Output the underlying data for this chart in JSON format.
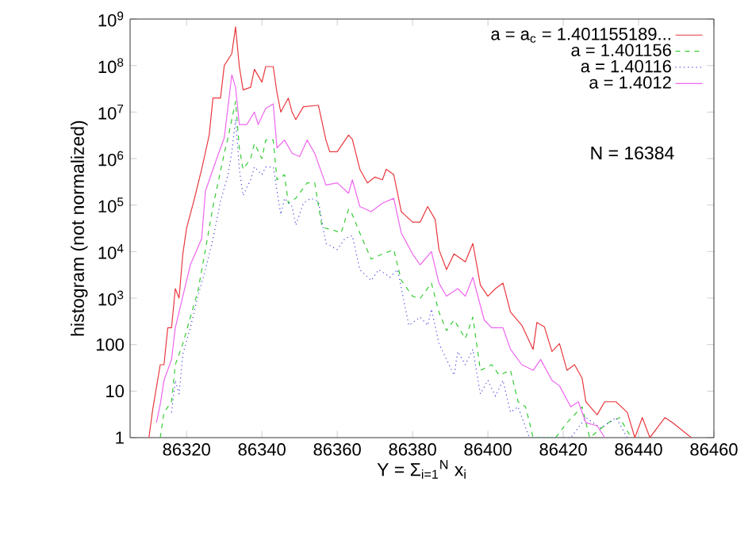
{
  "chart_data": {
    "type": "line",
    "xlabel": "Y = Σ$_{i=1}$$^{N}$ x$_{i}$",
    "ylabel": "histogram  (not normalized)",
    "log": "y",
    "legend": "top right",
    "marker": "none",
    "annotations": [
      "N = 16384"
    ],
    "xlim": [
      86305,
      86460
    ],
    "xticks": [
      86320,
      86340,
      86360,
      86380,
      86400,
      86420,
      86440,
      86460
    ],
    "ylim": [
      1,
      1000000000
    ],
    "yticks": [
      1,
      10,
      100,
      {
        "value": 1000,
        "label": "10$^{3}$"
      },
      {
        "value": 10000,
        "label": "10$^{4}$"
      },
      {
        "value": 100000,
        "label": "10$^{5}$"
      },
      {
        "value": 1000000,
        "label": "10$^{6}$"
      },
      {
        "value": 10000000,
        "label": "10$^{7}$"
      },
      {
        "value": 100000000,
        "label": "10$^{8}$"
      },
      {
        "value": 1000000000,
        "label": "10$^{9}$"
      }
    ],
    "series": [
      {
        "name": "a = a$_{c}$ = 1.401155189...",
        "color": "#e8383d",
        "line_style": "solid",
        "x": [
          86310,
          86311,
          86313,
          86314,
          86315,
          86316,
          86317,
          86318,
          86319,
          86320,
          86322,
          86324,
          86326,
          86327,
          86329,
          86330,
          86332,
          86333,
          86334,
          86335,
          86337,
          86338,
          86340,
          86341,
          86343,
          86344,
          86345,
          86347,
          86348,
          86349,
          86351,
          86355,
          86357,
          86358,
          86360,
          86363,
          86364,
          86366,
          86368,
          86370,
          86372,
          86373,
          86375,
          86377,
          86380,
          86382,
          86384,
          86386,
          86387,
          86389,
          86391,
          86394,
          86396,
          86398,
          86400,
          86402,
          86404,
          86406,
          86409,
          86412,
          86413,
          86415,
          86417,
          86419,
          86421,
          86423,
          86425,
          86426,
          86429,
          86431,
          86434,
          86437,
          86439,
          86441,
          86443,
          86447,
          86449,
          86454
        ],
        "values": [
          1,
          4,
          37,
          37,
          230,
          230,
          1600,
          1000,
          8900,
          32000,
          130000,
          590000,
          3200000,
          20000000,
          20000000,
          100000000,
          180000000,
          680000000,
          95000000,
          30000000,
          34000000,
          83000000,
          44000000,
          95000000,
          95000000,
          26000000,
          10000000,
          20000000,
          10000000,
          6900000,
          13000000,
          14000000,
          2500000,
          1400000,
          1400000,
          3200000,
          2600000,
          590000,
          300000,
          400000,
          350000,
          590000,
          450000,
          72000,
          43000,
          43000,
          93000,
          49000,
          11000,
          4100,
          8900,
          6000,
          15000,
          1900,
          1100,
          1600,
          2100,
          500,
          260,
          79,
          300,
          240,
          71,
          105,
          28,
          37,
          19,
          5.9,
          3.1,
          5.9,
          5.9,
          3.5,
          1,
          2.7,
          1,
          2.7,
          2.1,
          1
        ]
      },
      {
        "name": "a = 1.401156",
        "color": "#33cc33",
        "line_style": "dashed",
        "x": [
          86313,
          86314,
          86316,
          86317,
          86319,
          86321,
          86323,
          86325,
          86327,
          86330,
          86331,
          86333,
          86334,
          86335,
          86337,
          86338,
          86340,
          86341,
          86343,
          86344,
          86346,
          86347,
          86349,
          86352,
          86354,
          86356,
          86359,
          86361,
          86363,
          86364,
          86366,
          86369,
          86372,
          86375,
          86377,
          86380,
          86382,
          86385,
          86387,
          86389,
          86391,
          86394,
          86396,
          86398,
          86401,
          86403,
          86406,
          86408,
          86410,
          86412,
          86418,
          86421,
          86425,
          86427,
          86432,
          86435,
          86438
        ],
        "values": [
          1,
          3.5,
          5.9,
          37,
          105,
          390,
          1400,
          11000,
          93000,
          1300000,
          2800000,
          17000000,
          1700000,
          590000,
          1000000,
          2100000,
          1000000,
          2500000,
          2500000,
          350000,
          450000,
          110000,
          140000,
          300000,
          300000,
          33000,
          29000,
          25000,
          81000,
          63000,
          25000,
          6900,
          8900,
          11000,
          2400,
          1100,
          980,
          2100,
          500,
          200,
          340,
          135,
          390,
          28,
          37,
          22,
          28,
          5.9,
          4.6,
          1,
          1,
          2.1,
          4.6,
          1,
          2.1,
          2.7,
          1
        ]
      },
      {
        "name": "a = 1.40116",
        "color": "#4444dd",
        "line_style": "dotted",
        "x": [
          86316,
          86317,
          86318,
          86319,
          86321,
          86323,
          86325,
          86327,
          86329,
          86331,
          86332,
          86333,
          86334,
          86335,
          86337,
          86338,
          86340,
          86341,
          86343,
          86345,
          86346,
          86348,
          86349,
          86351,
          86353,
          86355,
          86357,
          86360,
          86362,
          86364,
          86366,
          86369,
          86371,
          86374,
          86376,
          86379,
          86382,
          86384,
          86385,
          86387,
          86391,
          86392,
          86394,
          86396,
          86398,
          86400,
          86402,
          86404,
          86406,
          86408,
          86411,
          86422,
          86426,
          86430,
          86434,
          86437
        ],
        "values": [
          3.5,
          17,
          8.7,
          62,
          230,
          1100,
          4100,
          19000,
          120000,
          450000,
          1400000,
          6900000,
          590000,
          160000,
          350000,
          660000,
          450000,
          660000,
          660000,
          63000,
          140000,
          93000,
          37000,
          110000,
          140000,
          120000,
          15000,
          11000,
          19000,
          22000,
          4100,
          2400,
          4100,
          2800,
          4100,
          260,
          390,
          260,
          580,
          105,
          22,
          71,
          37,
          79,
          8.7,
          17,
          7.8,
          17,
          3.5,
          4.6,
          1,
          1,
          2.7,
          1.6,
          2.7,
          1
        ]
      },
      {
        "name": "a = 1.4012",
        "color": "#ee66ee",
        "line_style": "solid",
        "x": [
          86312,
          86313,
          86314,
          86316,
          86317,
          86319,
          86321,
          86324,
          86325,
          86328,
          86330,
          86332,
          86333,
          86334,
          86336,
          86338,
          86339,
          86341,
          86343,
          86344,
          86346,
          86348,
          86350,
          86352,
          86354,
          86357,
          86360,
          86363,
          86364,
          86366,
          86369,
          86372,
          86375,
          86377,
          86380,
          86382,
          86385,
          86387,
          86389,
          86392,
          86394,
          86396,
          86399,
          86401,
          86404,
          86406,
          86409,
          86412,
          86414,
          86417,
          86419,
          86422,
          86424,
          86426,
          86429,
          86431
        ],
        "values": [
          2.1,
          5.2,
          17,
          48,
          230,
          1100,
          5200,
          19000,
          200000,
          1000000,
          2800000,
          63000000,
          34000000,
          5400000,
          5400000,
          10000000,
          5400000,
          12000000,
          15000000,
          1700000,
          2500000,
          1300000,
          1100000,
          2500000,
          1300000,
          270000,
          300000,
          180000,
          350000,
          93000,
          72000,
          110000,
          140000,
          25000,
          8900,
          5200,
          10000,
          2100,
          1100,
          1600,
          1100,
          2800,
          340,
          230,
          230,
          79,
          37,
          28,
          48,
          17,
          13,
          4.6,
          5.9,
          2.1,
          1.8,
          1
        ]
      }
    ]
  }
}
